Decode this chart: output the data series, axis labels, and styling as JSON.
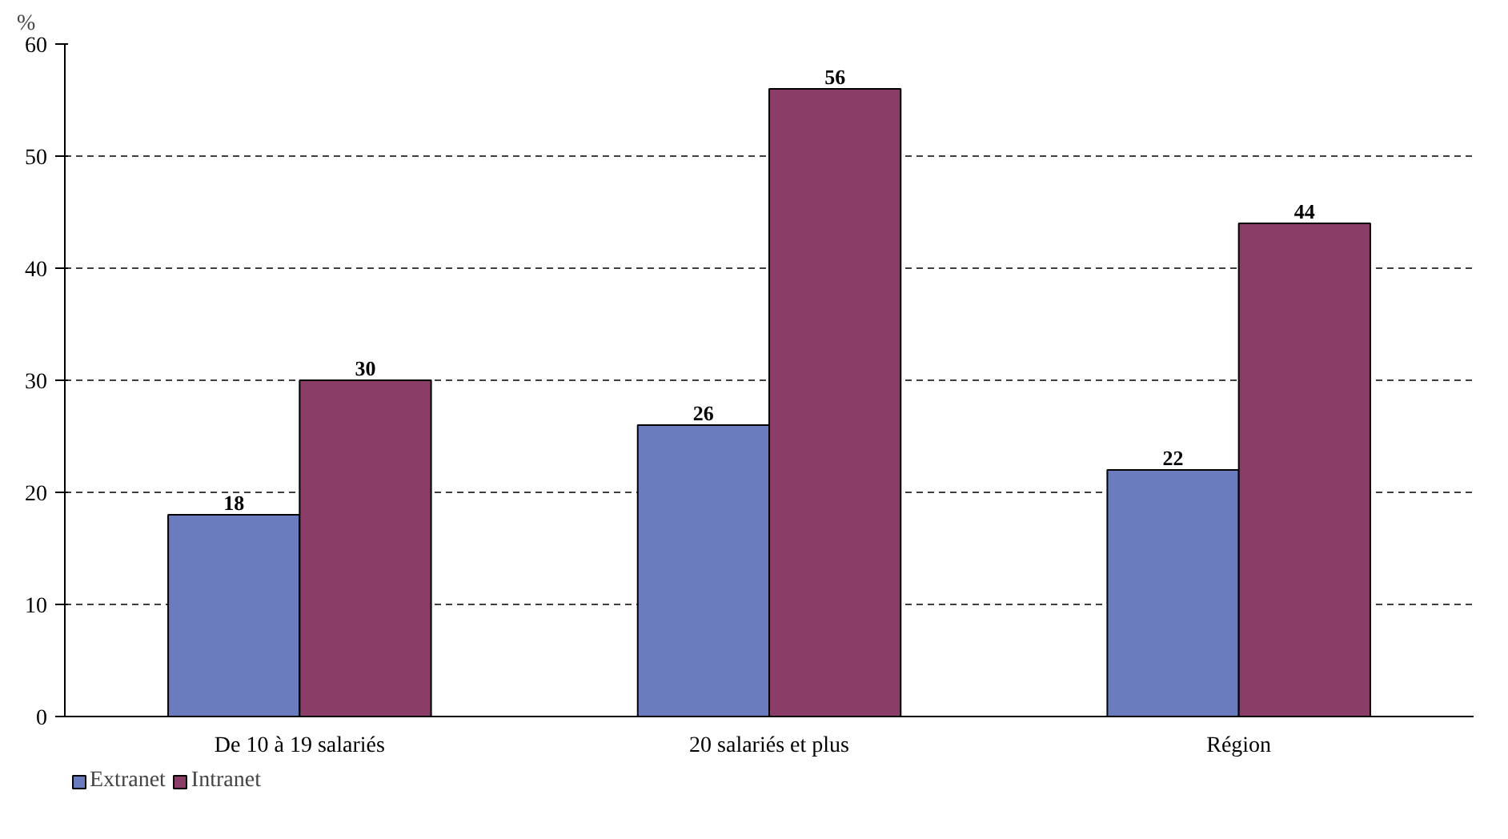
{
  "chart_data": {
    "type": "bar",
    "ylabel": "%",
    "categories": [
      "De 10 à 19 salariés",
      "20 salariés et plus",
      "Région"
    ],
    "series": [
      {
        "name": "Extranet",
        "color": "#6a7cbd",
        "values": [
          18,
          26,
          22
        ]
      },
      {
        "name": "Intranet",
        "color": "#8a3d66",
        "values": [
          30,
          56,
          44
        ]
      }
    ],
    "ylim": [
      0,
      60
    ],
    "yticks": [
      0,
      10,
      20,
      30,
      40,
      50,
      60
    ],
    "grid": "y",
    "legend": "bottom left",
    "data_labels": true
  }
}
